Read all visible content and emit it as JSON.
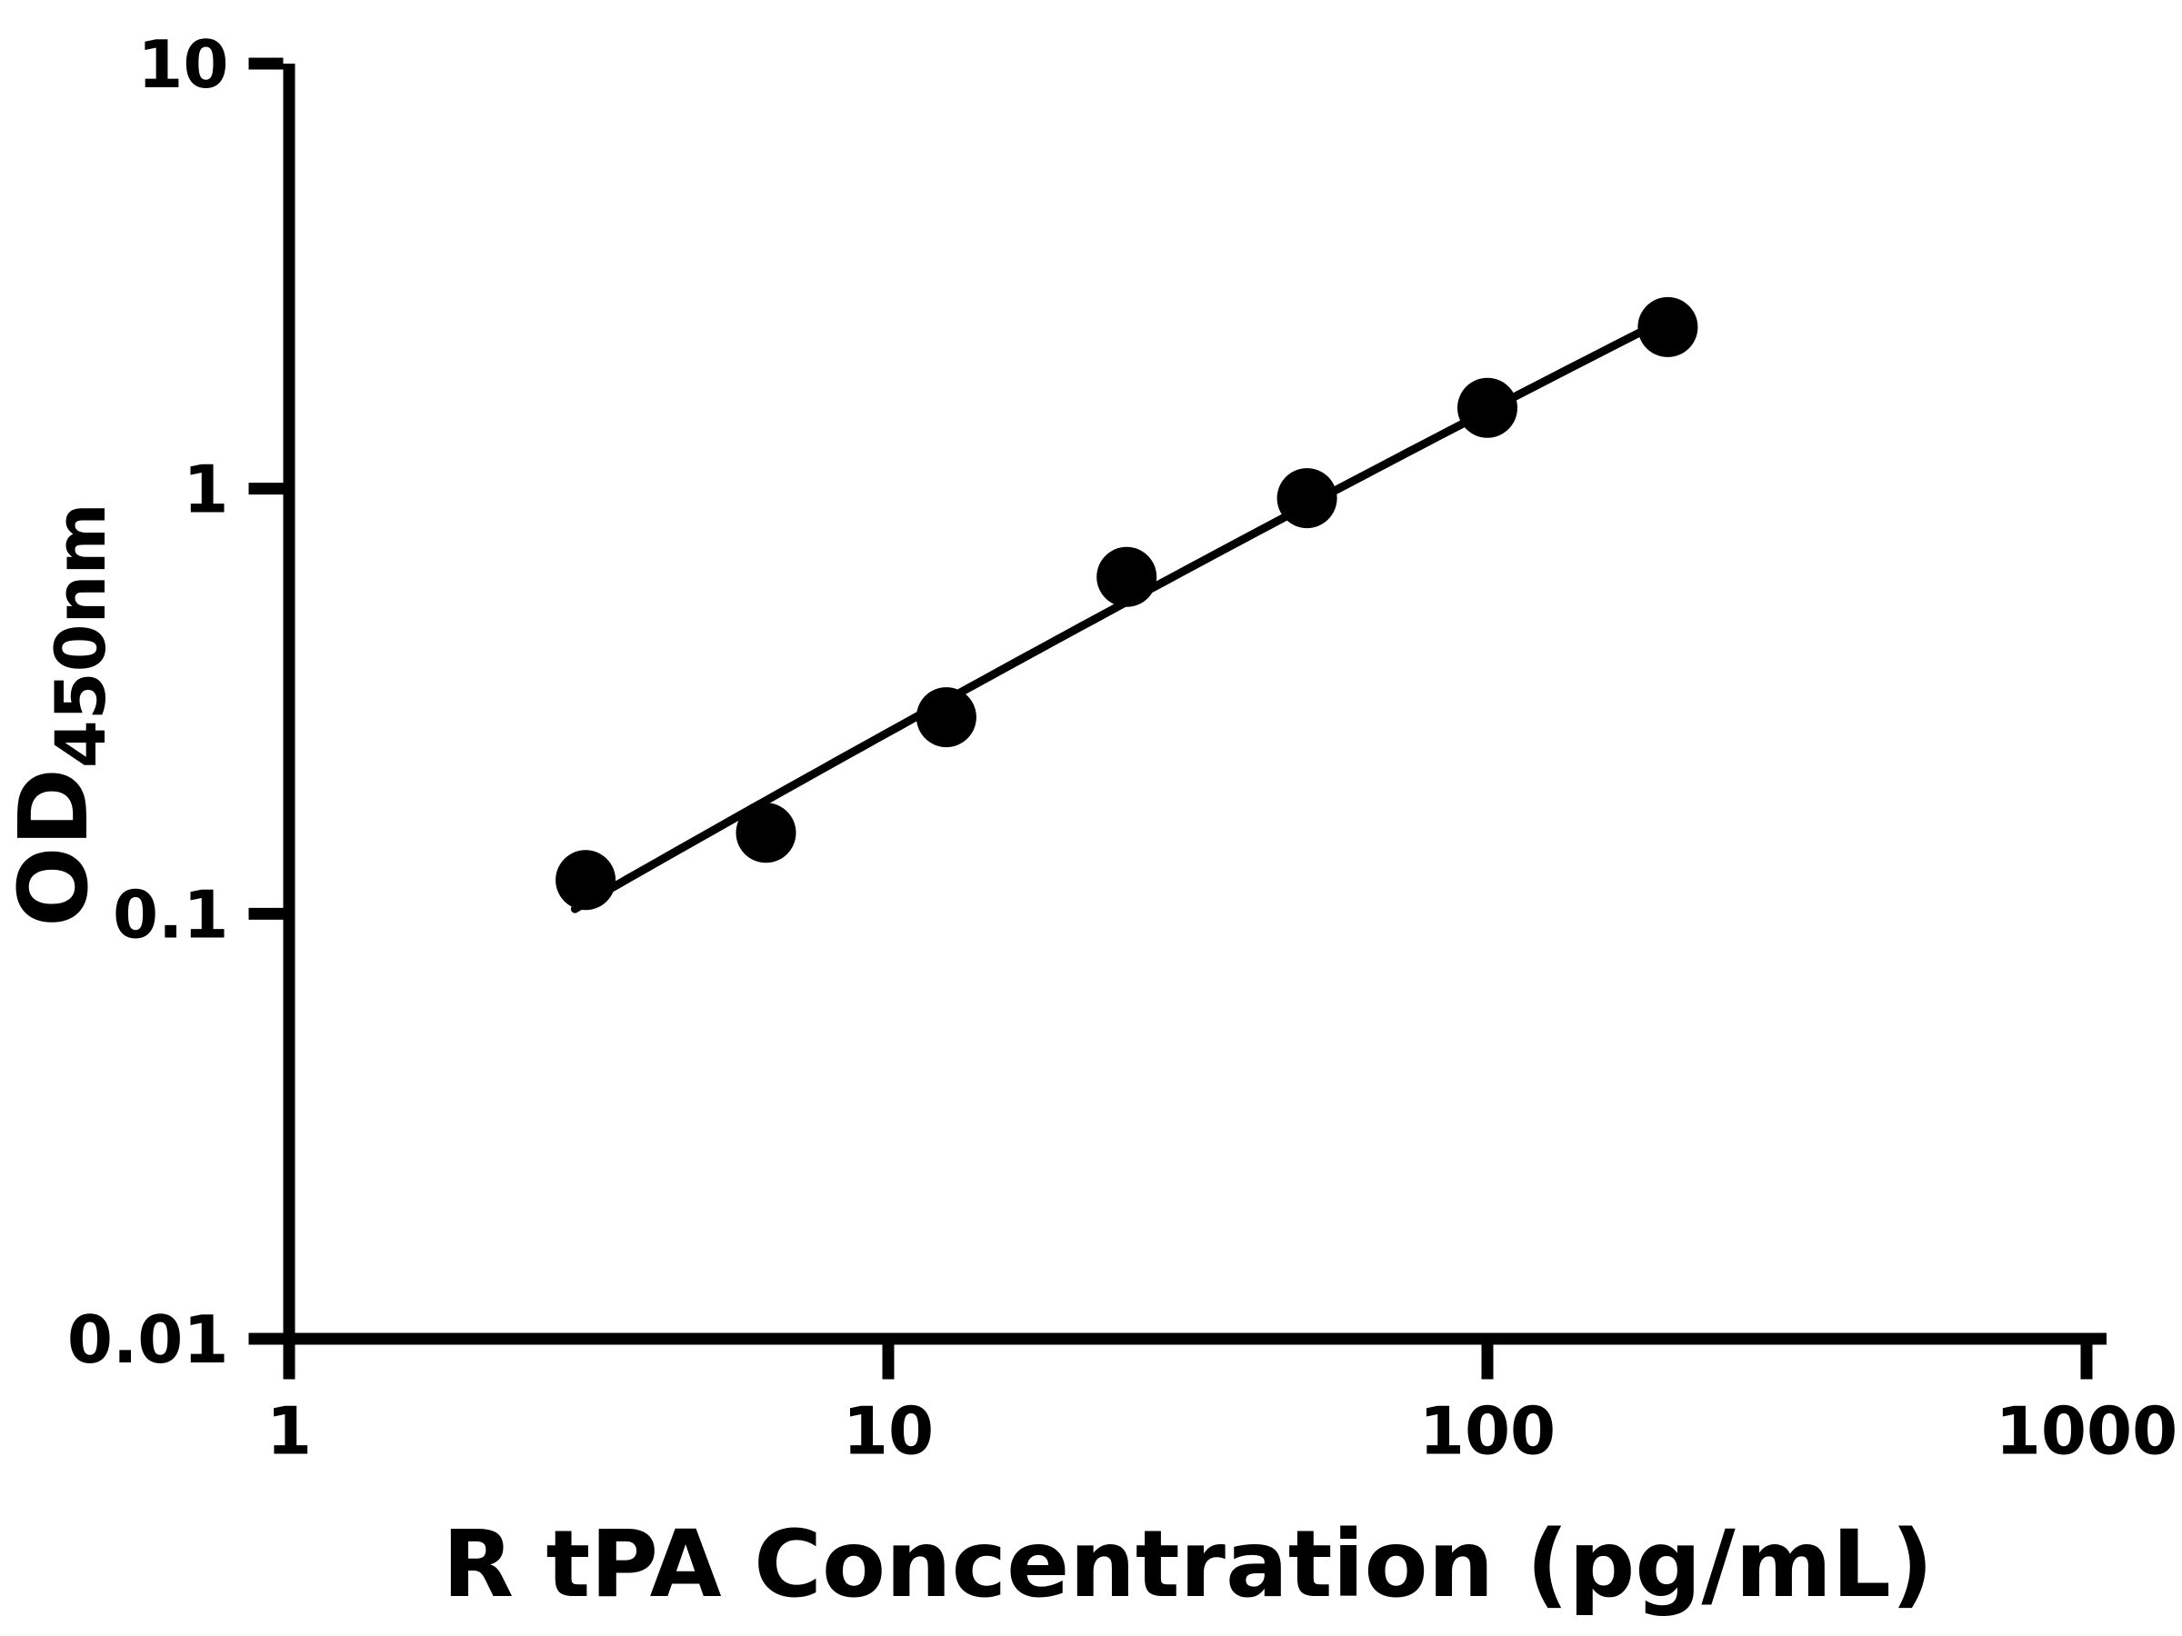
{
  "chart_data": {
    "type": "scatter",
    "title": "",
    "xlabel": "R tPA Concentration (pg/mL)",
    "ylabel_main": "OD",
    "ylabel_sub": "450nm",
    "x_scale": "log",
    "y_scale": "log",
    "xlim": [
      1,
      1000
    ],
    "ylim": [
      0.01,
      10
    ],
    "x_ticks": [
      1,
      10,
      100,
      1000
    ],
    "x_tick_labels": [
      "1",
      "10",
      "100",
      "1000"
    ],
    "y_ticks": [
      0.01,
      0.1,
      1,
      10
    ],
    "y_tick_labels": [
      "0.01",
      "0.1",
      "1",
      "10"
    ],
    "grid": false,
    "legend": "none",
    "points": [
      {
        "x": 3.125,
        "y": 0.12
      },
      {
        "x": 6.25,
        "y": 0.155
      },
      {
        "x": 12.5,
        "y": 0.29
      },
      {
        "x": 25,
        "y": 0.62
      },
      {
        "x": 50,
        "y": 0.95
      },
      {
        "x": 100,
        "y": 1.55
      },
      {
        "x": 200,
        "y": 2.4
      }
    ],
    "fit": {
      "type": "quadratic-loglog",
      "curve_x_range": [
        3.0,
        200
      ]
    },
    "marker_color": "#000000",
    "line_color": "#000000",
    "axis_color": "#000000",
    "background": "#ffffff"
  }
}
